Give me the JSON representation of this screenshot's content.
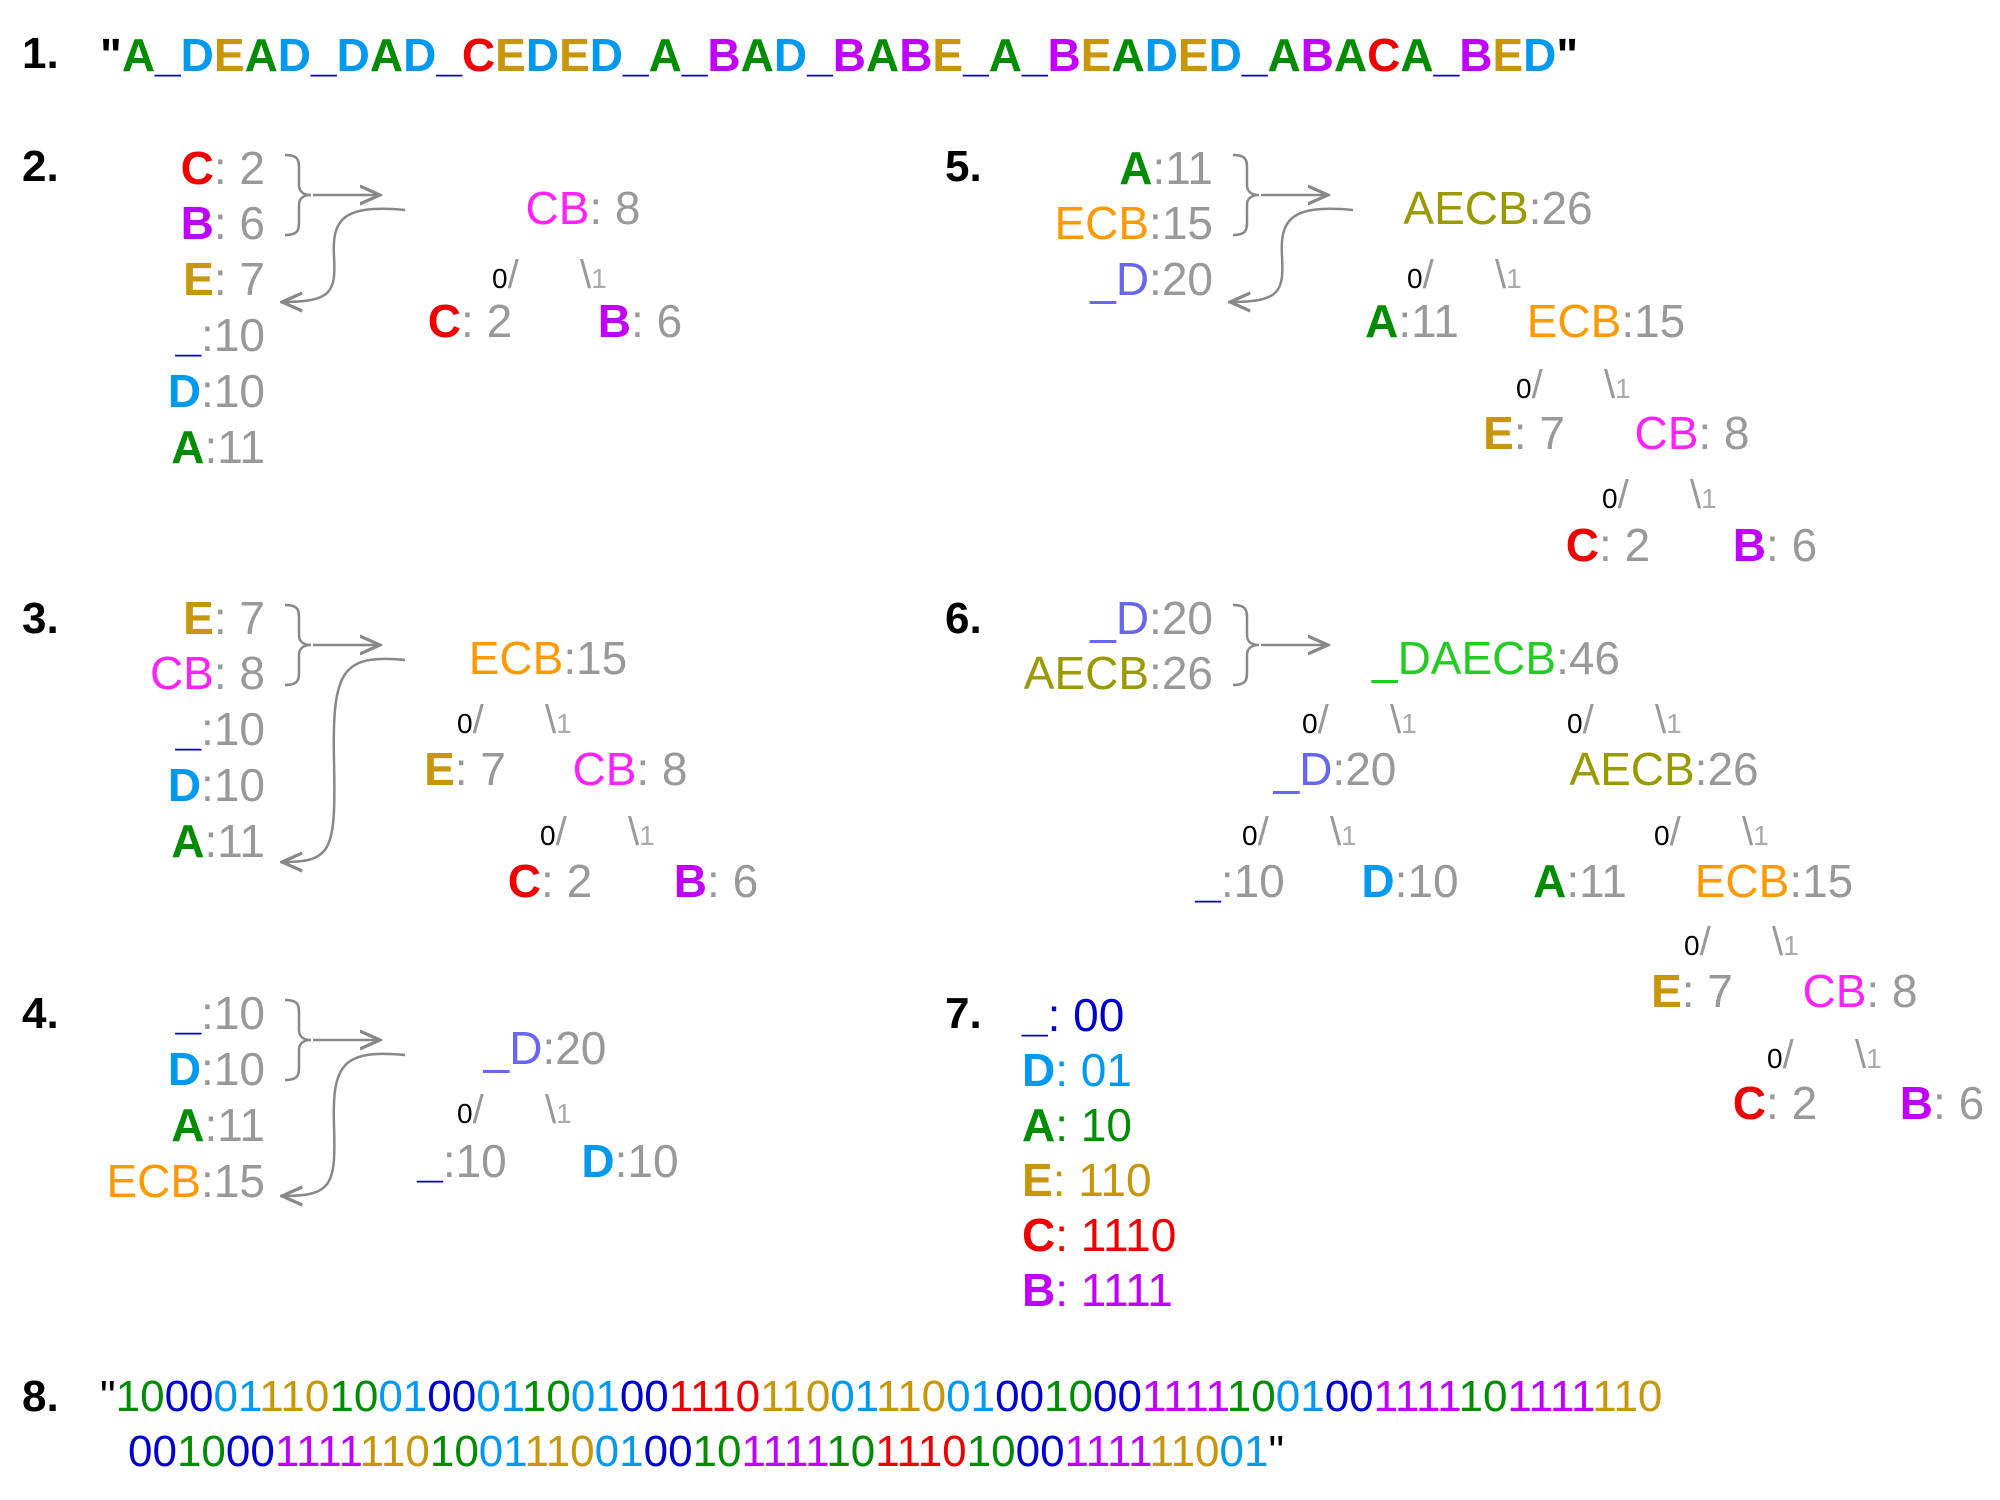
{
  "colors": {
    "A": "#008c00",
    "B": "#c000ff",
    "C": "#ee0000",
    "D": "#0099ee",
    "E": "#c8960a",
    "U": "#0000cc",
    "CB": "#ff22ff",
    "ECB": "#ff9900",
    "UD": "#6666ee",
    "AECB": "#999900",
    "UDAECB": "#22cc22",
    "num": "#999999",
    "arrow": "#888888"
  },
  "step_numbers": [
    "1.",
    "2.",
    "3.",
    "4.",
    "5.",
    "6.",
    "7.",
    "8."
  ],
  "quote": "\"",
  "message": [
    [
      "A",
      "A"
    ],
    [
      "_",
      "U"
    ],
    [
      "D",
      "D"
    ],
    [
      "E",
      "E"
    ],
    [
      "A",
      "A"
    ],
    [
      "D",
      "D"
    ],
    [
      "_",
      "U"
    ],
    [
      "D",
      "D"
    ],
    [
      "A",
      "A"
    ],
    [
      "D",
      "D"
    ],
    [
      "_",
      "U"
    ],
    [
      "C",
      "C"
    ],
    [
      "E",
      "E"
    ],
    [
      "D",
      "D"
    ],
    [
      "E",
      "E"
    ],
    [
      "D",
      "D"
    ],
    [
      "_",
      "U"
    ],
    [
      "A",
      "A"
    ],
    [
      "_",
      "U"
    ],
    [
      "B",
      "B"
    ],
    [
      "A",
      "A"
    ],
    [
      "D",
      "D"
    ],
    [
      "_",
      "U"
    ],
    [
      "B",
      "B"
    ],
    [
      "A",
      "A"
    ],
    [
      "B",
      "B"
    ],
    [
      "E",
      "E"
    ],
    [
      "_",
      "U"
    ],
    [
      "A",
      "A"
    ],
    [
      "_",
      "U"
    ],
    [
      "B",
      "B"
    ],
    [
      "E",
      "E"
    ],
    [
      "A",
      "A"
    ],
    [
      "D",
      "D"
    ],
    [
      "E",
      "E"
    ],
    [
      "D",
      "D"
    ],
    [
      "_",
      "U"
    ],
    [
      "A",
      "A"
    ],
    [
      "B",
      "B"
    ],
    [
      "A",
      "A"
    ],
    [
      "C",
      "C"
    ],
    [
      "A",
      "A"
    ],
    [
      "_",
      "U"
    ],
    [
      "B",
      "B"
    ],
    [
      "E",
      "E"
    ],
    [
      "D",
      "D"
    ]
  ],
  "symbols": {
    "A": "A",
    "B": "B",
    "C": "C",
    "D": "D",
    "E": "E",
    "U": "_",
    "CB": "CB",
    "ECB": "ECB",
    "UD": "_D",
    "AECB": "AECB",
    "UDAECB": "_DAECB"
  },
  "weights": {
    "A": "11",
    "B": " 6",
    "C": " 2",
    "D": "10",
    "E": " 7",
    "U": "10",
    "CB": " 8",
    "ECB": "15",
    "UD": "20",
    "AECB": "26",
    "UDAECB": "46"
  },
  "colon": ":",
  "bit0": "0",
  "bit1": "1",
  "slash_left": "/",
  "slash_right": "\\",
  "codes": [
    {
      "key": "U",
      "code": "00"
    },
    {
      "key": "D",
      "code": "01"
    },
    {
      "key": "A",
      "code": "10"
    },
    {
      "key": "E",
      "code": "110"
    },
    {
      "key": "C",
      "code": "1110"
    },
    {
      "key": "B",
      "code": "1111"
    }
  ],
  "encoded_line1": [
    [
      "10",
      "A"
    ],
    [
      "00",
      "U"
    ],
    [
      "01",
      "D"
    ],
    [
      "110",
      "E"
    ],
    [
      "10",
      "A"
    ],
    [
      "01",
      "D"
    ],
    [
      "00",
      "U"
    ],
    [
      "01",
      "D"
    ],
    [
      "10",
      "A"
    ],
    [
      "01",
      "D"
    ],
    [
      "00",
      "U"
    ],
    [
      "1110",
      "C"
    ],
    [
      "110",
      "E"
    ],
    [
      "01",
      "D"
    ],
    [
      "110",
      "E"
    ],
    [
      "01",
      "D"
    ],
    [
      "00",
      "U"
    ],
    [
      "10",
      "A"
    ],
    [
      "00",
      "U"
    ],
    [
      "1111",
      "B"
    ],
    [
      "10",
      "A"
    ],
    [
      "01",
      "D"
    ],
    [
      "00",
      "U"
    ],
    [
      "1111",
      "B"
    ],
    [
      "10",
      "A"
    ],
    [
      "1111",
      "B"
    ],
    [
      "110",
      "E"
    ]
  ],
  "encoded_line2": [
    [
      "00",
      "U"
    ],
    [
      "10",
      "A"
    ],
    [
      "00",
      "U"
    ],
    [
      "1111",
      "B"
    ],
    [
      "110",
      "E"
    ],
    [
      "10",
      "A"
    ],
    [
      "01",
      "D"
    ],
    [
      "110",
      "E"
    ],
    [
      "01",
      "D"
    ],
    [
      "00",
      "U"
    ],
    [
      "10",
      "A"
    ],
    [
      "1111",
      "B"
    ],
    [
      "10",
      "A"
    ],
    [
      "1110",
      "C"
    ],
    [
      "10",
      "A"
    ],
    [
      "00",
      "U"
    ],
    [
      "1111",
      "B"
    ],
    [
      "110",
      "E"
    ],
    [
      "01",
      "D"
    ]
  ]
}
